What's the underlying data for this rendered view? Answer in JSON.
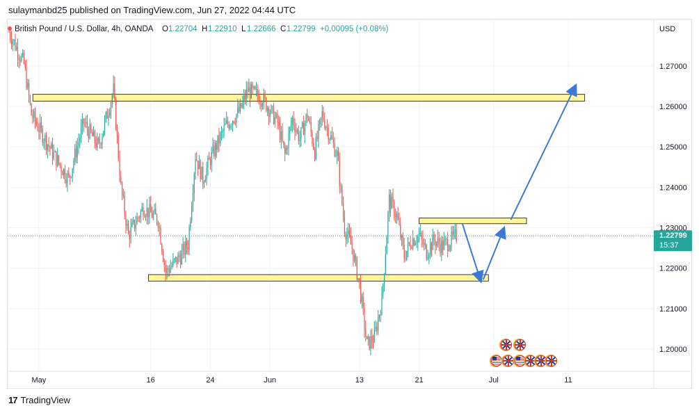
{
  "publish_line": "sulaymanbd25 published on TradingView.com, Jun 27, 2022 04:44 UTC",
  "footer": {
    "brand": "TradingView",
    "logo_icon": "tradingview-logo-icon"
  },
  "colors": {
    "up": "#26a69a",
    "down": "#ef5350",
    "zone_fill": "#fff59d",
    "zone_border": "#3b3b3b",
    "arrow": "#3c78d8",
    "price_line": "#26a69a",
    "price_label_bg": "#26a69a"
  },
  "chart_data": {
    "type": "candlestick",
    "symbol_title": "British Pound / U.S. Dollar, 4h, OANDA",
    "ohlc": {
      "o_label": "O",
      "o": "1.22704",
      "h_label": "H",
      "h": "1.22910",
      "l_label": "L",
      "l": "1.22666",
      "c_label": "C",
      "c": "1.22799",
      "change": "+0.00095 (+0.08%)"
    },
    "currency": "USD",
    "y_ticks": [
      "1.27000",
      "1.26000",
      "1.25000",
      "1.24000",
      "1.23000",
      "1.22000",
      "1.21000",
      "1.20000"
    ],
    "ylim": [
      1.1945,
      1.2815
    ],
    "x_ticks": [
      "May",
      "16",
      "24",
      "Jun",
      "13",
      "21",
      "Jul",
      "11"
    ],
    "current_price": {
      "value": 1.22799,
      "label": "1.22799",
      "countdown": "15:37"
    },
    "zones": [
      {
        "name": "resistance-zone",
        "y_low": 1.2613,
        "y_high": 1.263
      },
      {
        "name": "upper-target-zone",
        "y_low": 1.231,
        "y_high": 1.2324
      },
      {
        "name": "support-zone",
        "y_low": 1.2168,
        "y_high": 1.2184
      }
    ],
    "projection_path": [
      {
        "label": "drop-to-support",
        "from_y": 1.231,
        "to_y": 1.2172
      },
      {
        "label": "rally-to-target",
        "from_y": 1.2172,
        "to_y": 1.2295
      },
      {
        "label": "rally-to-resistance",
        "from_y": 1.232,
        "to_y": 1.2648
      }
    ],
    "price_path_anchors": [
      {
        "date": "Apr 27",
        "price": 1.2785
      },
      {
        "date": "Apr 29",
        "price": 1.2705
      },
      {
        "date": "Apr 30",
        "price": 1.258
      },
      {
        "date": "May 3",
        "price": 1.248
      },
      {
        "date": "May 5",
        "price": 1.242
      },
      {
        "date": "May 7",
        "price": 1.256
      },
      {
        "date": "May 9",
        "price": 1.25
      },
      {
        "date": "May 11",
        "price": 1.264
      },
      {
        "date": "May 12",
        "price": 1.24
      },
      {
        "date": "May 13",
        "price": 1.228
      },
      {
        "date": "May 15",
        "price": 1.235
      },
      {
        "date": "May 17",
        "price": 1.232
      },
      {
        "date": "May 18",
        "price": 1.219
      },
      {
        "date": "May 20",
        "price": 1.223
      },
      {
        "date": "May 21",
        "price": 1.226
      },
      {
        "date": "May 22",
        "price": 1.248
      },
      {
        "date": "May 23",
        "price": 1.242
      },
      {
        "date": "May 24",
        "price": 1.247
      },
      {
        "date": "May 26",
        "price": 1.255
      },
      {
        "date": "May 28",
        "price": 1.259
      },
      {
        "date": "May 29",
        "price": 1.264
      },
      {
        "date": "May 31",
        "price": 1.262
      },
      {
        "date": "Jun 2",
        "price": 1.256
      },
      {
        "date": "Jun 3",
        "price": 1.248
      },
      {
        "date": "Jun 4",
        "price": 1.257
      },
      {
        "date": "Jun 5",
        "price": 1.252
      },
      {
        "date": "Jun 6",
        "price": 1.258
      },
      {
        "date": "Jun 7",
        "price": 1.249
      },
      {
        "date": "Jun 8",
        "price": 1.258
      },
      {
        "date": "Jun 10",
        "price": 1.248
      },
      {
        "date": "Jun 11",
        "price": 1.23
      },
      {
        "date": "Jun 12",
        "price": 1.225
      },
      {
        "date": "Jun 13",
        "price": 1.216
      },
      {
        "date": "Jun 14",
        "price": 1.201
      },
      {
        "date": "Jun 15",
        "price": 1.203
      },
      {
        "date": "Jun 16",
        "price": 1.212
      },
      {
        "date": "Jun 17",
        "price": 1.237
      },
      {
        "date": "Jun 18",
        "price": 1.233
      },
      {
        "date": "Jun 19",
        "price": 1.223
      },
      {
        "date": "Jun 20",
        "price": 1.227
      },
      {
        "date": "Jun 21",
        "price": 1.228
      },
      {
        "date": "Jun 22",
        "price": 1.224
      },
      {
        "date": "Jun 23",
        "price": 1.227
      },
      {
        "date": "Jun 24",
        "price": 1.2255
      },
      {
        "date": "Jun 25",
        "price": 1.2265
      },
      {
        "date": "Jun 26",
        "price": 1.228
      }
    ],
    "event_icons": [
      {
        "icon": "uk-flag-icon"
      },
      {
        "icon": "uk-flag-icon"
      },
      {
        "icon": "us-flag-icon"
      },
      {
        "icon": "uk-flag-icon"
      },
      {
        "icon": "us-flag-icon"
      },
      {
        "icon": "uk-flag-icon"
      },
      {
        "icon": "uk-flag-icon"
      },
      {
        "icon": "uk-flag-icon"
      }
    ]
  }
}
